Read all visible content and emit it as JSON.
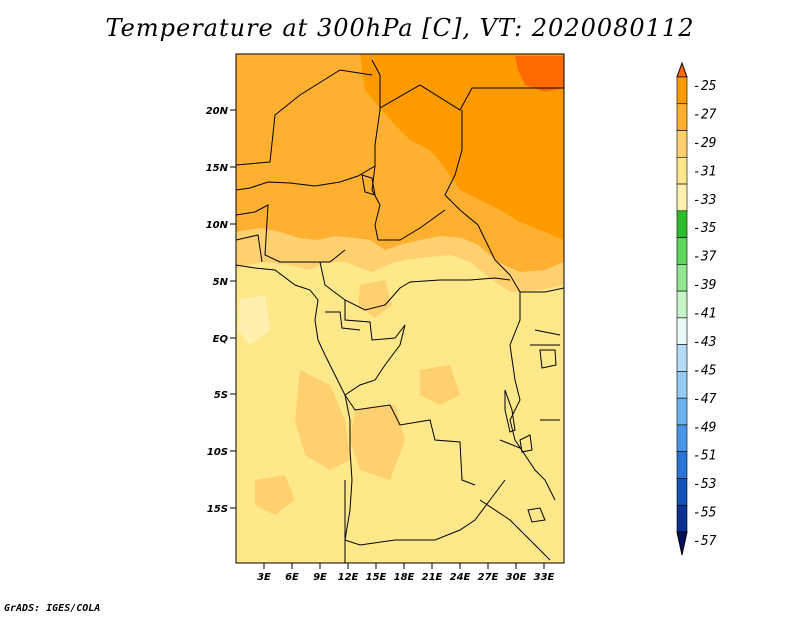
{
  "title": "Temperature at 300hPa [C], VT: 2020080112",
  "credit": "GrADS: IGES/COLA",
  "map": {
    "y_axis_labels": [
      "20N",
      "15N",
      "10N",
      "5N",
      "EQ",
      "5S",
      "10S",
      "15S"
    ],
    "x_axis_labels": [
      "3E",
      "6E",
      "9E",
      "12E",
      "15E",
      "18E",
      "21E",
      "24E",
      "27E",
      "30E",
      "33E"
    ]
  },
  "colorbar": {
    "labels": [
      "-25",
      "-27",
      "-29",
      "-31",
      "-33",
      "-35",
      "-37",
      "-39",
      "-41",
      "-43",
      "-45",
      "-47",
      "-49",
      "-51",
      "-53",
      "-55",
      "-57"
    ],
    "colors": [
      "#ff6a00",
      "#ff9a00",
      "#ffb030",
      "#ffd070",
      "#ffe88a",
      "#fff0b0",
      "#2ebd2e",
      "#5ed65e",
      "#90e690",
      "#c8f5c8",
      "#e8fafa",
      "#b4dcf8",
      "#96cbf5",
      "#6eb3ef",
      "#4a96e6",
      "#2a74d6",
      "#1452b8",
      "#0a3090",
      "#050f60"
    ]
  }
}
